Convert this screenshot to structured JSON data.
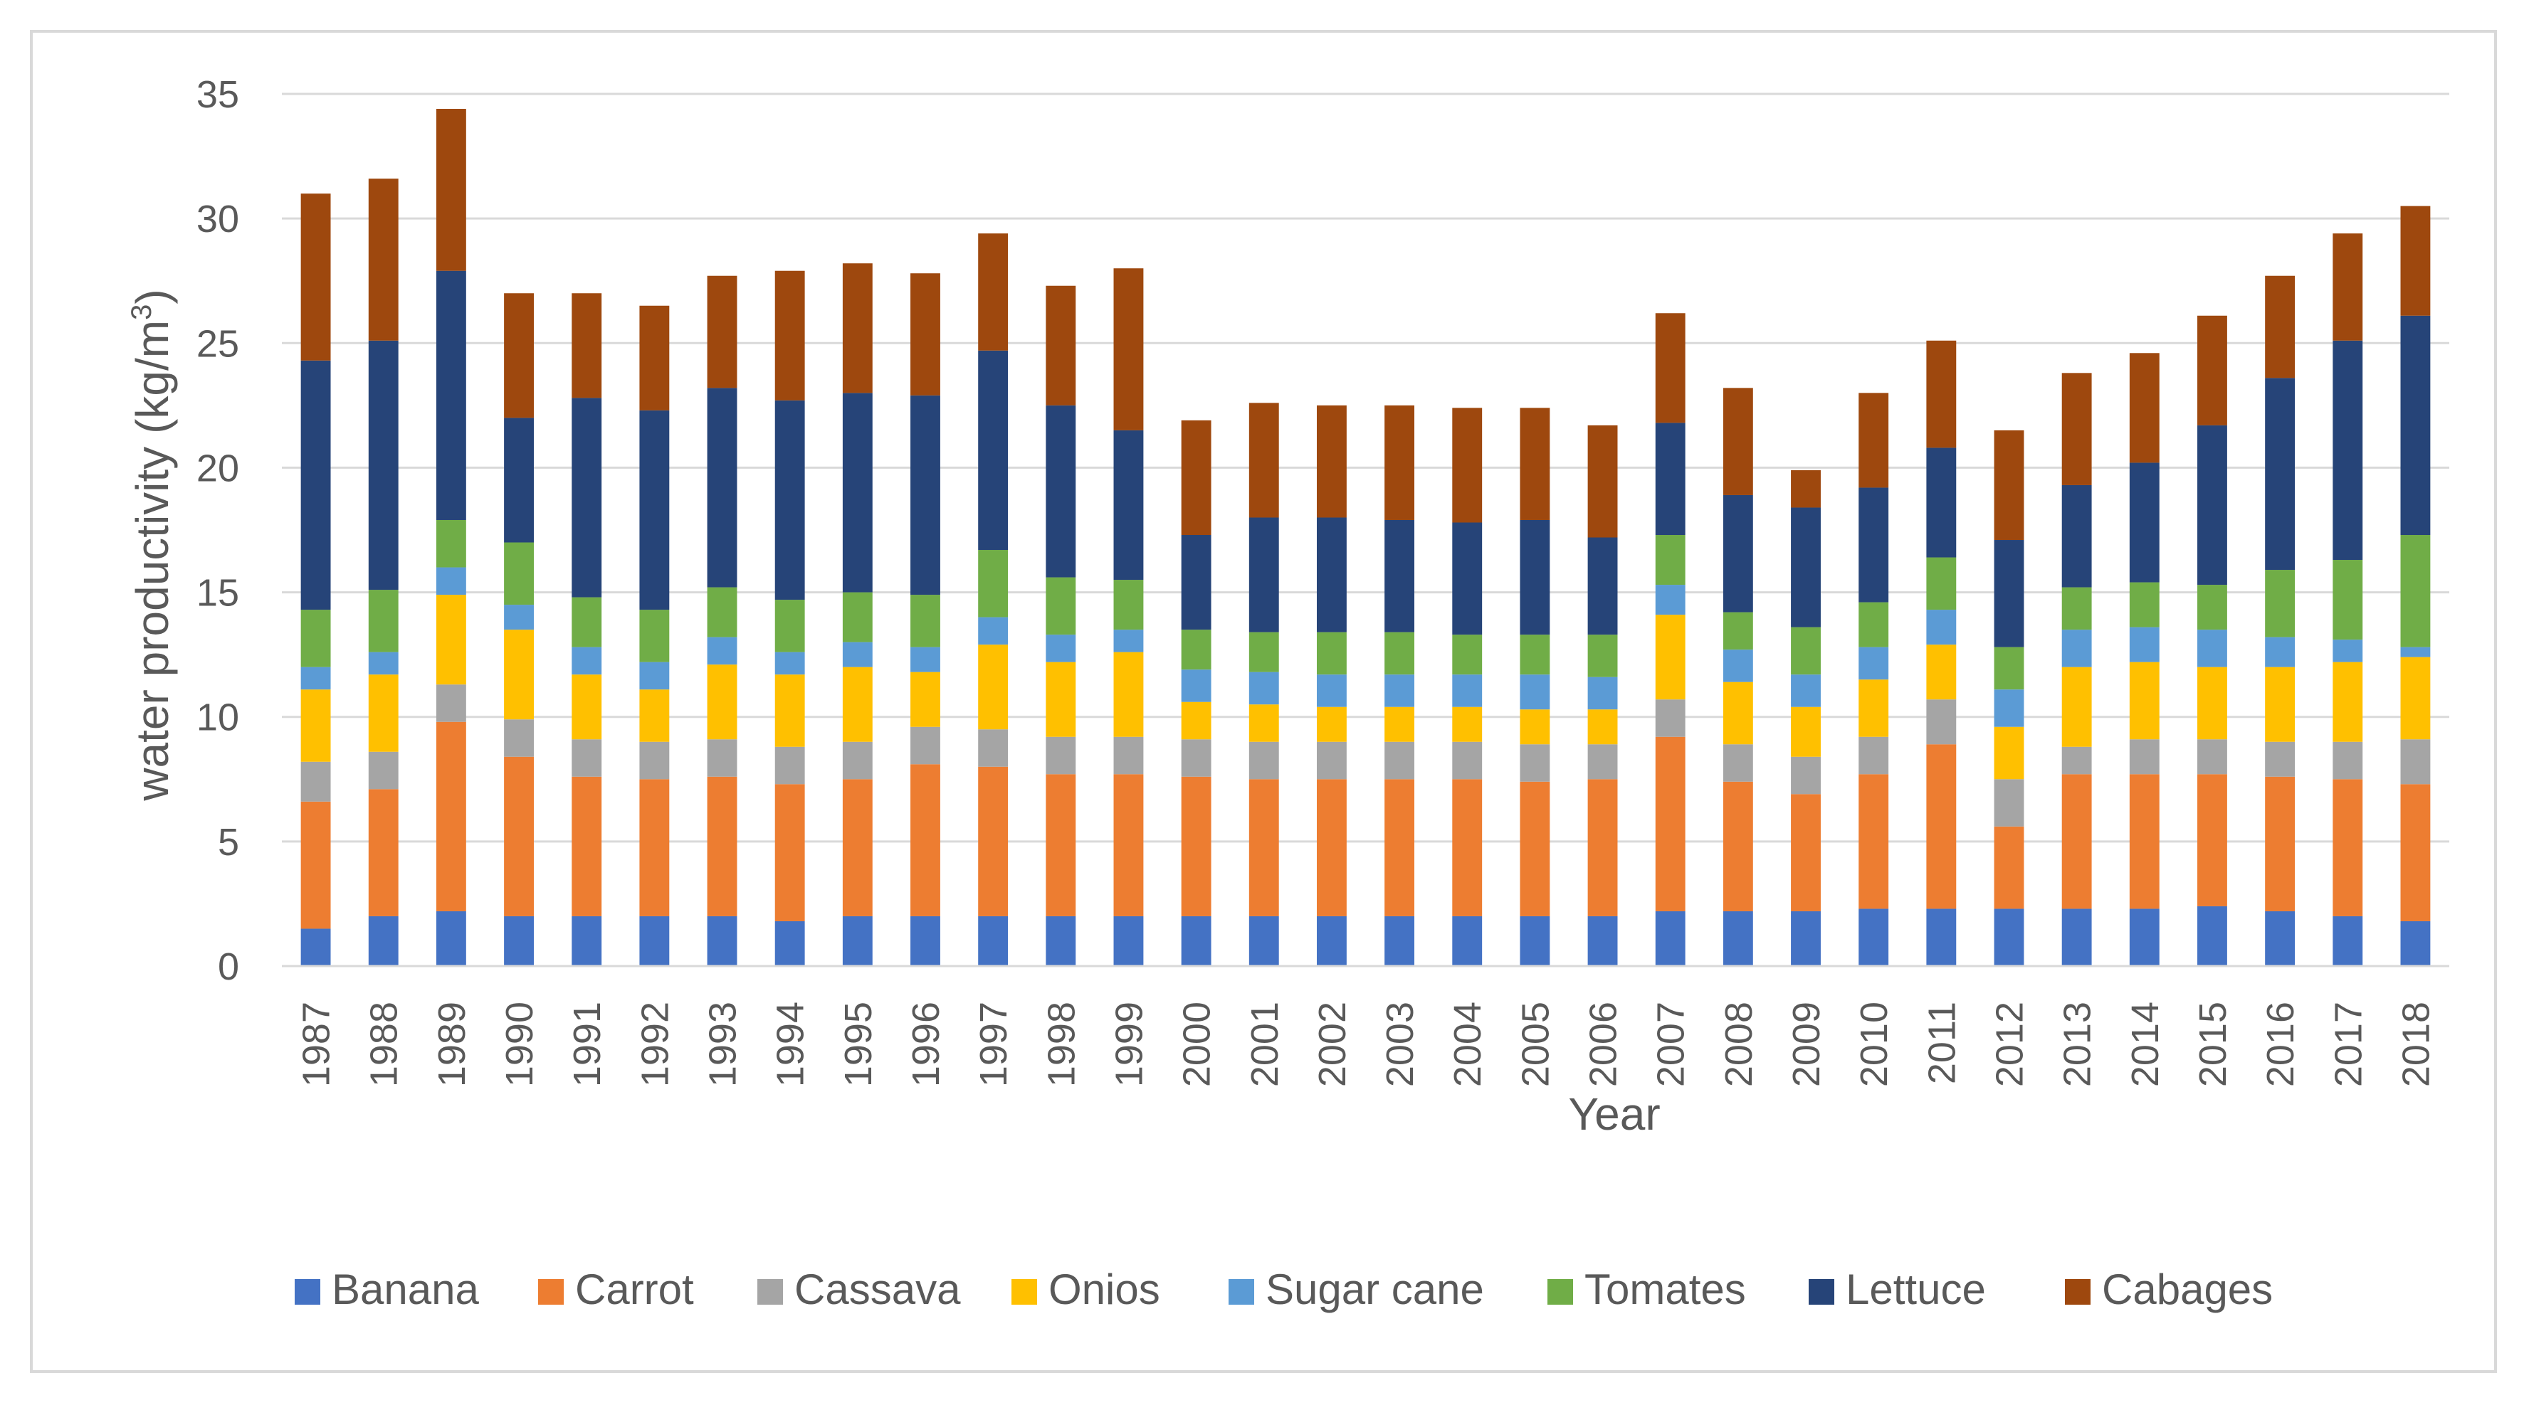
{
  "chart_data": {
    "type": "bar",
    "stacked": true,
    "title": "",
    "xlabel": "Year",
    "ylabel": "water productivity (kg/m³)",
    "ylabel_main": "water productivity (kg/m",
    "ylabel_sup": "3",
    "ylabel_close": ")",
    "ylim": [
      0,
      35
    ],
    "yticks": [
      0,
      5,
      10,
      15,
      20,
      25,
      30,
      35
    ],
    "grid": true,
    "legend_position": "bottom",
    "categories": [
      "1987",
      "1988",
      "1989",
      "1990",
      "1991",
      "1992",
      "1993",
      "1994",
      "1995",
      "1996",
      "1997",
      "1998",
      "1999",
      "2000",
      "2001",
      "2002",
      "2003",
      "2004",
      "2005",
      "2006",
      "2007",
      "2008",
      "2009",
      "2010",
      "2011",
      "2012",
      "2013",
      "2014",
      "2015",
      "2016",
      "2017",
      "2018"
    ],
    "series": [
      {
        "name": "Banana",
        "color": "#4472C4",
        "values": [
          1.5,
          2.0,
          2.2,
          2.0,
          2.0,
          2.0,
          2.0,
          1.8,
          2.0,
          2.0,
          2.0,
          2.0,
          2.0,
          2.0,
          2.0,
          2.0,
          2.0,
          2.0,
          2.0,
          2.0,
          2.2,
          2.2,
          2.2,
          2.3,
          2.3,
          2.3,
          2.3,
          2.3,
          2.4,
          2.2,
          2.0,
          1.8
        ]
      },
      {
        "name": "Carrot",
        "color": "#ED7D31",
        "values": [
          5.1,
          5.1,
          7.6,
          6.4,
          5.6,
          5.5,
          5.6,
          5.5,
          5.5,
          6.1,
          6.0,
          5.7,
          5.7,
          5.6,
          5.5,
          5.5,
          5.5,
          5.5,
          5.4,
          5.5,
          7.0,
          5.2,
          4.7,
          5.4,
          6.6,
          3.3,
          5.4,
          5.4,
          5.3,
          5.4,
          5.5,
          5.5
        ]
      },
      {
        "name": "Cassava",
        "color": "#A5A5A5",
        "values": [
          1.6,
          1.5,
          1.5,
          1.5,
          1.5,
          1.5,
          1.5,
          1.5,
          1.5,
          1.5,
          1.5,
          1.5,
          1.5,
          1.5,
          1.5,
          1.5,
          1.5,
          1.5,
          1.5,
          1.4,
          1.5,
          1.5,
          1.5,
          1.5,
          1.8,
          1.9,
          1.1,
          1.4,
          1.4,
          1.4,
          1.5,
          1.8
        ]
      },
      {
        "name": "Onios",
        "color": "#FFC000",
        "values": [
          2.9,
          3.1,
          3.6,
          3.6,
          2.6,
          2.1,
          3.0,
          2.9,
          3.0,
          2.2,
          3.4,
          3.0,
          3.4,
          1.5,
          1.5,
          1.4,
          1.4,
          1.4,
          1.4,
          1.4,
          3.4,
          2.5,
          2.0,
          2.3,
          2.2,
          2.1,
          3.2,
          3.1,
          2.9,
          3.0,
          3.2,
          3.3
        ]
      },
      {
        "name": "Sugar cane",
        "color": "#5B9BD5",
        "values": [
          0.9,
          0.9,
          1.1,
          1.0,
          1.1,
          1.1,
          1.1,
          0.9,
          1.0,
          1.0,
          1.1,
          1.1,
          0.9,
          1.3,
          1.3,
          1.3,
          1.3,
          1.3,
          1.4,
          1.3,
          1.2,
          1.3,
          1.3,
          1.3,
          1.4,
          1.5,
          1.5,
          1.4,
          1.5,
          1.2,
          0.9,
          0.4
        ]
      },
      {
        "name": "Tomates",
        "color": "#70AD47",
        "values": [
          2.3,
          2.5,
          1.9,
          2.5,
          2.0,
          2.1,
          2.0,
          2.1,
          2.0,
          2.1,
          2.7,
          2.3,
          2.0,
          1.6,
          1.6,
          1.7,
          1.7,
          1.6,
          1.6,
          1.7,
          2.0,
          1.5,
          1.9,
          1.8,
          2.1,
          1.7,
          1.7,
          1.8,
          1.8,
          2.7,
          3.2,
          4.5
        ]
      },
      {
        "name": "Lettuce",
        "color": "#264478",
        "values": [
          10.0,
          10.0,
          10.0,
          5.0,
          8.0,
          8.0,
          8.0,
          8.0,
          8.0,
          8.0,
          8.0,
          6.9,
          6.0,
          3.8,
          4.6,
          4.6,
          4.5,
          4.5,
          4.6,
          3.9,
          4.5,
          4.7,
          4.8,
          4.6,
          4.4,
          4.3,
          4.1,
          4.8,
          6.4,
          7.7,
          8.8,
          8.8
        ]
      },
      {
        "name": "Cabages",
        "color": "#9E480E",
        "values": [
          6.7,
          6.5,
          6.5,
          5.0,
          4.2,
          4.2,
          4.5,
          5.2,
          5.2,
          4.9,
          4.7,
          4.8,
          6.5,
          4.6,
          4.6,
          4.5,
          4.6,
          4.6,
          4.5,
          4.5,
          4.4,
          4.3,
          1.5,
          3.8,
          4.3,
          4.4,
          4.5,
          4.4,
          4.4,
          4.1,
          4.3,
          4.4
        ]
      }
    ]
  }
}
